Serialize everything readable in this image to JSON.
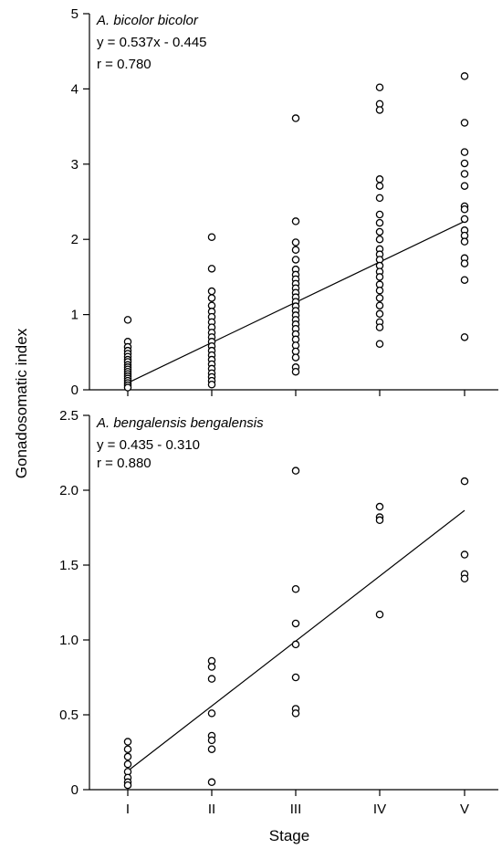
{
  "ylabel": "Gonadosomatic index",
  "xlabel": "Stage",
  "chart_data": [
    {
      "type": "scatter",
      "title": "A. bicolor bicolor",
      "equation": "y = 0.537x - 0.445",
      "r_label": "r = 0.780",
      "ylim": [
        0,
        5
      ],
      "yticks": [
        0,
        1,
        2,
        3,
        4,
        5
      ],
      "ytick_labels": [
        "0",
        "1",
        "2",
        "3",
        "4",
        "5"
      ],
      "categories": [
        "I",
        "II",
        "III",
        "IV",
        "V"
      ],
      "fit": {
        "slope": 0.537,
        "intercept": -0.445,
        "x_range": [
          1,
          5
        ]
      },
      "points": [
        [
          1,
          0.93
        ],
        [
          1,
          0.64
        ],
        [
          1,
          0.57
        ],
        [
          1,
          0.52
        ],
        [
          1,
          0.48
        ],
        [
          1,
          0.44
        ],
        [
          1,
          0.4
        ],
        [
          1,
          0.37
        ],
        [
          1,
          0.33
        ],
        [
          1,
          0.3
        ],
        [
          1,
          0.27
        ],
        [
          1,
          0.24
        ],
        [
          1,
          0.21
        ],
        [
          1,
          0.18
        ],
        [
          1,
          0.15
        ],
        [
          1,
          0.12
        ],
        [
          1,
          0.09
        ],
        [
          1,
          0.06
        ],
        [
          1,
          0.03
        ],
        [
          2,
          2.03
        ],
        [
          2,
          1.61
        ],
        [
          2,
          1.31
        ],
        [
          2,
          1.22
        ],
        [
          2,
          1.12
        ],
        [
          2,
          1.04
        ],
        [
          2,
          0.97
        ],
        [
          2,
          0.9
        ],
        [
          2,
          0.83
        ],
        [
          2,
          0.76
        ],
        [
          2,
          0.7
        ],
        [
          2,
          0.64
        ],
        [
          2,
          0.58
        ],
        [
          2,
          0.52
        ],
        [
          2,
          0.46
        ],
        [
          2,
          0.4
        ],
        [
          2,
          0.34
        ],
        [
          2,
          0.28
        ],
        [
          2,
          0.22
        ],
        [
          2,
          0.17
        ],
        [
          2,
          0.12
        ],
        [
          2,
          0.07
        ],
        [
          3,
          3.61
        ],
        [
          3,
          2.24
        ],
        [
          3,
          1.96
        ],
        [
          3,
          1.86
        ],
        [
          3,
          1.73
        ],
        [
          3,
          1.6
        ],
        [
          3,
          1.53
        ],
        [
          3,
          1.47
        ],
        [
          3,
          1.41
        ],
        [
          3,
          1.35
        ],
        [
          3,
          1.29
        ],
        [
          3,
          1.23
        ],
        [
          3,
          1.17
        ],
        [
          3,
          1.11
        ],
        [
          3,
          1.05
        ],
        [
          3,
          0.99
        ],
        [
          3,
          0.93
        ],
        [
          3,
          0.87
        ],
        [
          3,
          0.81
        ],
        [
          3,
          0.74
        ],
        [
          3,
          0.67
        ],
        [
          3,
          0.59
        ],
        [
          3,
          0.51
        ],
        [
          3,
          0.43
        ],
        [
          3,
          0.3
        ],
        [
          3,
          0.24
        ],
        [
          4,
          4.02
        ],
        [
          4,
          3.8
        ],
        [
          4,
          3.72
        ],
        [
          4,
          2.8
        ],
        [
          4,
          2.71
        ],
        [
          4,
          2.55
        ],
        [
          4,
          2.33
        ],
        [
          4,
          2.22
        ],
        [
          4,
          2.1
        ],
        [
          4,
          2.0
        ],
        [
          4,
          1.87
        ],
        [
          4,
          1.8
        ],
        [
          4,
          1.73
        ],
        [
          4,
          1.65
        ],
        [
          4,
          1.57
        ],
        [
          4,
          1.5
        ],
        [
          4,
          1.4
        ],
        [
          4,
          1.32
        ],
        [
          4,
          1.22
        ],
        [
          4,
          1.12
        ],
        [
          4,
          1.01
        ],
        [
          4,
          0.9
        ],
        [
          4,
          0.83
        ],
        [
          4,
          0.61
        ],
        [
          5,
          4.17
        ],
        [
          5,
          3.55
        ],
        [
          5,
          3.16
        ],
        [
          5,
          3.01
        ],
        [
          5,
          2.87
        ],
        [
          5,
          2.71
        ],
        [
          5,
          2.44
        ],
        [
          5,
          2.4
        ],
        [
          5,
          2.27
        ],
        [
          5,
          2.12
        ],
        [
          5,
          2.05
        ],
        [
          5,
          1.97
        ],
        [
          5,
          1.75
        ],
        [
          5,
          1.68
        ],
        [
          5,
          1.46
        ],
        [
          5,
          0.7
        ]
      ]
    },
    {
      "type": "scatter",
      "title": "A. bengalensis bengalensis",
      "equation": "y = 0.435 - 0.310",
      "r_label": "r = 0.880",
      "ylim": [
        0,
        2.5
      ],
      "yticks": [
        0,
        0.5,
        1.0,
        1.5,
        2.0,
        2.5
      ],
      "ytick_labels": [
        "0",
        "0.5",
        "1.0",
        "1.5",
        "2.0",
        "2.5"
      ],
      "categories": [
        "I",
        "II",
        "III",
        "IV",
        "V"
      ],
      "fit": {
        "slope": 0.435,
        "intercept": -0.31,
        "x_range": [
          1,
          5
        ]
      },
      "points": [
        [
          1,
          0.32
        ],
        [
          1,
          0.27
        ],
        [
          1,
          0.22
        ],
        [
          1,
          0.17
        ],
        [
          1,
          0.12
        ],
        [
          1,
          0.08
        ],
        [
          1,
          0.05
        ],
        [
          1,
          0.03
        ],
        [
          2,
          0.86
        ],
        [
          2,
          0.82
        ],
        [
          2,
          0.74
        ],
        [
          2,
          0.51
        ],
        [
          2,
          0.36
        ],
        [
          2,
          0.33
        ],
        [
          2,
          0.27
        ],
        [
          2,
          0.05
        ],
        [
          3,
          2.13
        ],
        [
          3,
          1.34
        ],
        [
          3,
          1.11
        ],
        [
          3,
          0.97
        ],
        [
          3,
          0.75
        ],
        [
          3,
          0.54
        ],
        [
          3,
          0.51
        ],
        [
          4,
          1.89
        ],
        [
          4,
          1.82
        ],
        [
          4,
          1.8
        ],
        [
          4,
          1.17
        ],
        [
          5,
          2.06
        ],
        [
          5,
          1.57
        ],
        [
          5,
          1.44
        ],
        [
          5,
          1.41
        ]
      ]
    }
  ]
}
